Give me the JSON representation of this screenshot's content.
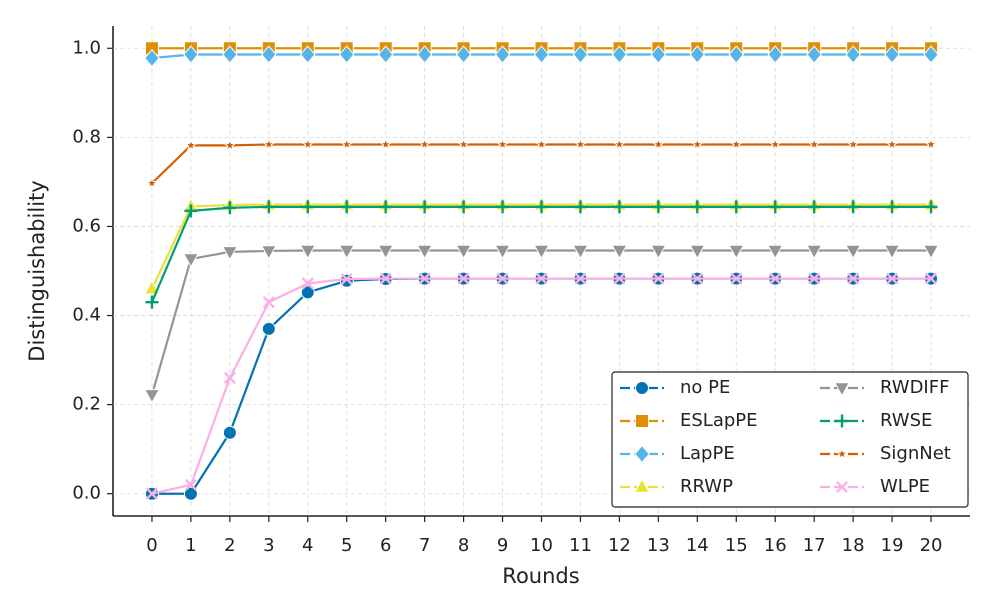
{
  "chart_data": {
    "type": "line",
    "xlabel": "Rounds",
    "ylabel": "Distinguishability",
    "x": [
      0,
      1,
      2,
      3,
      4,
      5,
      6,
      7,
      8,
      9,
      10,
      11,
      12,
      13,
      14,
      15,
      16,
      17,
      18,
      19,
      20
    ],
    "xlim": [
      -1,
      21
    ],
    "xticks": [
      0,
      1,
      2,
      3,
      4,
      5,
      6,
      7,
      8,
      9,
      10,
      11,
      12,
      13,
      14,
      15,
      16,
      17,
      18,
      19,
      20
    ],
    "ylim": [
      -0.05,
      1.05
    ],
    "yticks": [
      {
        "value": 0,
        "label": "0.0"
      },
      {
        "value": 0.2,
        "label": "0.2"
      },
      {
        "value": 0.4,
        "label": "0.4"
      },
      {
        "value": 0.6,
        "label": "0.6"
      },
      {
        "value": 0.8,
        "label": "0.8"
      },
      {
        "value": 1,
        "label": "1.0"
      }
    ],
    "grid": true,
    "legend": "lower right",
    "series": [
      {
        "name": "no PE",
        "color": "#0173b2",
        "marker": "circle",
        "values": [
          0,
          0,
          0.137,
          0.37,
          0.452,
          0.478,
          0.482,
          0.483,
          0.483,
          0.483,
          0.483,
          0.483,
          0.483,
          0.483,
          0.483,
          0.483,
          0.483,
          0.483,
          0.483,
          0.483,
          0.483
        ]
      },
      {
        "name": "ESLapPE",
        "color": "#de8f05",
        "marker": "square",
        "values": [
          1,
          1,
          1,
          1,
          1,
          1,
          1,
          1,
          1,
          1,
          1,
          1,
          1,
          1,
          1,
          1,
          1,
          1,
          1,
          1,
          1
        ]
      },
      {
        "name": "LapPE",
        "color": "#56b4e9",
        "marker": "diamond",
        "values": [
          0.978,
          0.986,
          0.986,
          0.986,
          0.986,
          0.986,
          0.986,
          0.986,
          0.986,
          0.986,
          0.986,
          0.986,
          0.986,
          0.986,
          0.986,
          0.986,
          0.986,
          0.986,
          0.986,
          0.986,
          0.986
        ]
      },
      {
        "name": "RRWP",
        "color": "#ece133",
        "marker": "triangle-up",
        "values": [
          0.46,
          0.645,
          0.648,
          0.649,
          0.649,
          0.649,
          0.649,
          0.649,
          0.649,
          0.649,
          0.649,
          0.649,
          0.649,
          0.649,
          0.649,
          0.649,
          0.649,
          0.649,
          0.649,
          0.649,
          0.649
        ]
      },
      {
        "name": "RWDIFF",
        "color": "#949494",
        "marker": "triangle-down",
        "values": [
          0.222,
          0.527,
          0.543,
          0.545,
          0.546,
          0.546,
          0.546,
          0.546,
          0.546,
          0.546,
          0.546,
          0.546,
          0.546,
          0.546,
          0.546,
          0.546,
          0.546,
          0.546,
          0.546,
          0.546,
          0.546
        ]
      },
      {
        "name": "RWSE",
        "color": "#029e73",
        "marker": "plus",
        "values": [
          0.43,
          0.635,
          0.642,
          0.644,
          0.644,
          0.644,
          0.644,
          0.644,
          0.644,
          0.644,
          0.644,
          0.644,
          0.644,
          0.644,
          0.644,
          0.644,
          0.644,
          0.644,
          0.644,
          0.644,
          0.644
        ]
      },
      {
        "name": "SignNet",
        "color": "#d55e00",
        "marker": "star",
        "values": [
          0.697,
          0.782,
          0.782,
          0.784,
          0.784,
          0.784,
          0.784,
          0.784,
          0.784,
          0.784,
          0.784,
          0.784,
          0.784,
          0.784,
          0.784,
          0.784,
          0.784,
          0.784,
          0.784,
          0.784,
          0.784
        ]
      },
      {
        "name": "WLPE",
        "color": "#fbafe4",
        "marker": "x",
        "values": [
          0,
          0.02,
          0.26,
          0.43,
          0.472,
          0.482,
          0.483,
          0.483,
          0.483,
          0.483,
          0.483,
          0.483,
          0.483,
          0.483,
          0.483,
          0.483,
          0.483,
          0.483,
          0.483,
          0.483,
          0.483
        ]
      }
    ]
  }
}
